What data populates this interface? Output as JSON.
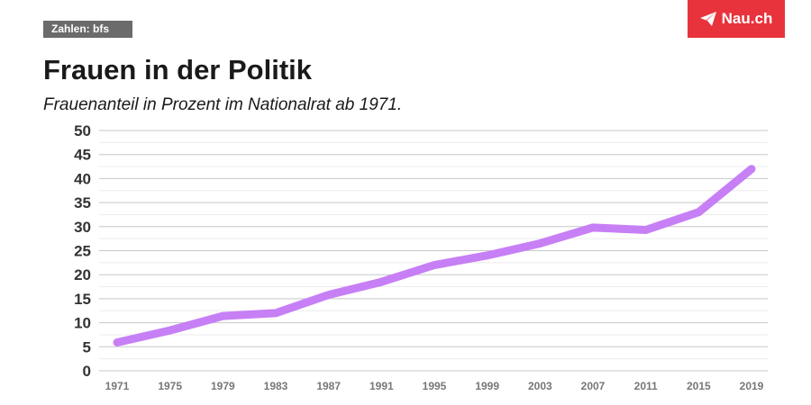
{
  "source_label": "Zahlen: bfs",
  "logo": {
    "text": "Nau.ch",
    "icon": "paper-plane-icon",
    "color": "#e8333c"
  },
  "chart_data": {
    "type": "line",
    "title": "Frauen in der Politik",
    "subtitle": "Frauenanteil in Prozent im Nationalrat ab 1971.",
    "xlabel": "",
    "ylabel": "",
    "x": [
      1971,
      1975,
      1979,
      1983,
      1987,
      1991,
      1995,
      1999,
      2003,
      2007,
      2011,
      2015,
      2019
    ],
    "x_tick_labels": [
      "1971",
      "1975",
      "1979",
      "1983",
      "1987",
      "1991",
      "1995",
      "1999",
      "2003",
      "2007",
      "2011",
      "2015",
      "2019"
    ],
    "series": [
      {
        "values": [
          5.9,
          8.4,
          11.4,
          12.0,
          15.8,
          18.5,
          22.0,
          24.0,
          26.5,
          29.8,
          29.3,
          33.0,
          42.0
        ],
        "color": "#c77ff5"
      }
    ],
    "ylim": [
      0,
      50
    ],
    "y_ticks": [
      0,
      5,
      10,
      15,
      20,
      25,
      30,
      35,
      40,
      45,
      50
    ],
    "grid": true,
    "legend": "none"
  }
}
